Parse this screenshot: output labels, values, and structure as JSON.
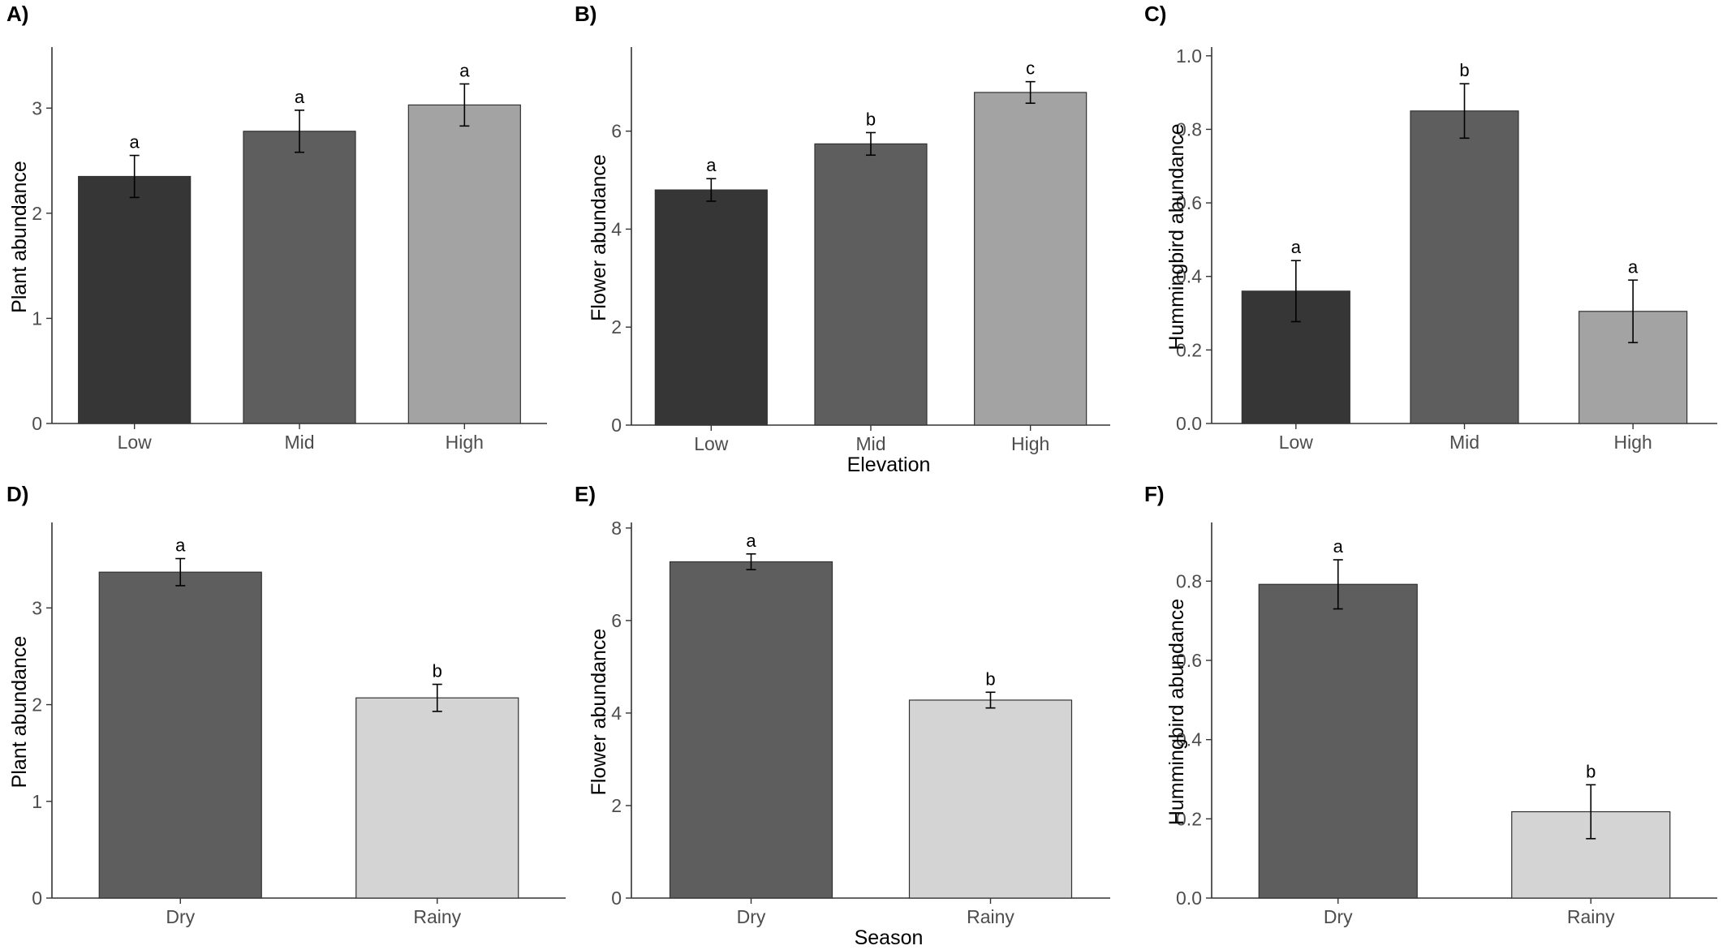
{
  "x_axis_titles": {
    "elevation": "Elevation",
    "season": "Season"
  },
  "chart_data": [
    {
      "panel": "A)",
      "type": "bar",
      "categories": [
        "Low",
        "Mid",
        "High"
      ],
      "values": [
        2.35,
        2.78,
        3.03
      ],
      "errors": [
        0.2,
        0.2,
        0.2
      ],
      "letters": [
        "a",
        "a",
        "a"
      ],
      "colors": [
        "#363636",
        "#5e5e5e",
        "#a3a3a3"
      ],
      "ylabel": "Plant abundance",
      "xlabel": "",
      "ylim": [
        0,
        3.55
      ],
      "yticks": [
        "0",
        "1",
        "2",
        "3"
      ],
      "ytick_values": [
        0,
        1,
        2,
        3
      ]
    },
    {
      "panel": "B)",
      "type": "bar",
      "categories": [
        "Low",
        "Mid",
        "High"
      ],
      "values": [
        4.8,
        5.74,
        6.79
      ],
      "errors": [
        0.23,
        0.23,
        0.22
      ],
      "letters": [
        "a",
        "b",
        "c"
      ],
      "colors": [
        "#363636",
        "#5e5e5e",
        "#a3a3a3"
      ],
      "ylabel": "Flower abundance",
      "xlabel": "Elevation",
      "ylim": [
        0,
        7.65
      ],
      "yticks": [
        "0",
        "2",
        "4",
        "6"
      ],
      "ytick_values": [
        0,
        2,
        4,
        6
      ]
    },
    {
      "panel": "C)",
      "type": "bar",
      "categories": [
        "Low",
        "Mid",
        "High"
      ],
      "values": [
        0.36,
        0.85,
        0.305
      ],
      "errors": [
        0.083,
        0.074,
        0.085
      ],
      "letters": [
        "a",
        "b",
        "a"
      ],
      "colors": [
        "#363636",
        "#5e5e5e",
        "#a3a3a3"
      ],
      "ylabel": "Hummingbird abundance",
      "xlabel": "",
      "ylim": [
        0,
        1.015
      ],
      "yticks": [
        "0.0",
        "0.2",
        "0.4",
        "0.6",
        "0.8",
        "1.0"
      ],
      "ytick_values": [
        0,
        0.2,
        0.4,
        0.6,
        0.8,
        1.0
      ]
    },
    {
      "panel": "D)",
      "type": "bar",
      "categories": [
        "Dry",
        "Rainy"
      ],
      "values": [
        3.37,
        2.07
      ],
      "errors": [
        0.14,
        0.14
      ],
      "letters": [
        "a",
        "b"
      ],
      "colors": [
        "#5e5e5e",
        "#d4d4d4"
      ],
      "ylabel": "Plant abundance",
      "xlabel": "",
      "ylim": [
        0,
        3.85
      ],
      "yticks": [
        "0",
        "1",
        "2",
        "3"
      ],
      "ytick_values": [
        0,
        1,
        2,
        3
      ]
    },
    {
      "panel": "E)",
      "type": "bar",
      "categories": [
        "Dry",
        "Rainy"
      ],
      "values": [
        7.27,
        4.28
      ],
      "errors": [
        0.17,
        0.17
      ],
      "letters": [
        "a",
        "b"
      ],
      "colors": [
        "#5e5e5e",
        "#d4d4d4"
      ],
      "ylabel": "Flower abundance",
      "xlabel": "Season",
      "ylim": [
        0,
        8.05
      ],
      "yticks": [
        "0",
        "2",
        "4",
        "6",
        "8"
      ],
      "ytick_values": [
        0,
        2,
        4,
        6,
        8
      ]
    },
    {
      "panel": "F)",
      "type": "bar",
      "categories": [
        "Dry",
        "Rainy"
      ],
      "values": [
        0.792,
        0.218
      ],
      "errors": [
        0.062,
        0.068
      ],
      "letters": [
        "a",
        "b"
      ],
      "colors": [
        "#5e5e5e",
        "#d4d4d4"
      ],
      "ylabel": "Hummingbird abundance",
      "xlabel": "",
      "ylim": [
        0,
        0.94
      ],
      "yticks": [
        "0.0",
        "0.2",
        "0.4",
        "0.6",
        "0.8"
      ],
      "ytick_values": [
        0,
        0.2,
        0.4,
        0.6,
        0.8
      ]
    }
  ]
}
